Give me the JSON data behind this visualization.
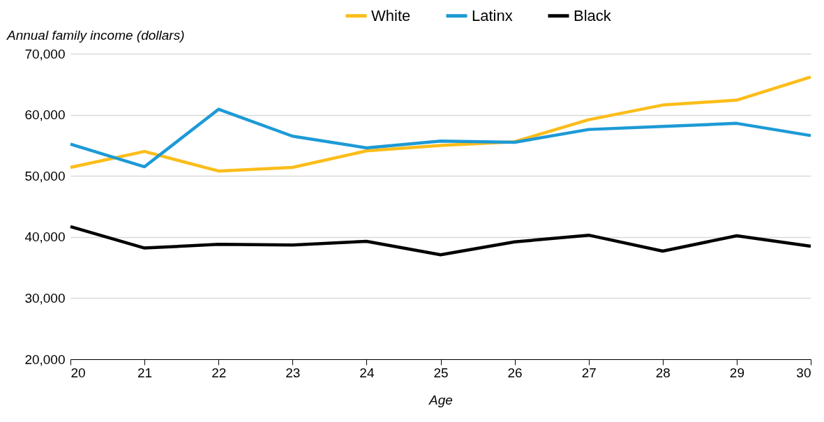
{
  "chart_data": {
    "type": "line",
    "xlabel": "Age",
    "ylabel": "Annual family income (dollars)",
    "x": [
      20,
      21,
      22,
      23,
      24,
      25,
      26,
      27,
      28,
      29,
      30
    ],
    "series": [
      {
        "name": "White",
        "color": "#fbbd1a",
        "values": [
          51400,
          54000,
          50800,
          51400,
          54100,
          55000,
          55600,
          59200,
          61600,
          62400,
          66200
        ]
      },
      {
        "name": "Latinx",
        "color": "#1d9ad6",
        "values": [
          55200,
          51500,
          60900,
          56500,
          54600,
          55700,
          55500,
          57600,
          58100,
          58600,
          56600
        ]
      },
      {
        "name": "Black",
        "color": "#000000",
        "values": [
          41700,
          38200,
          38800,
          38700,
          39300,
          37100,
          39200,
          40300,
          37700,
          40200,
          38500
        ]
      }
    ],
    "xlim": [
      20,
      30
    ],
    "xticks": [
      20,
      21,
      22,
      23,
      24,
      25,
      26,
      27,
      28,
      29,
      30
    ],
    "ylim": [
      20000,
      70000
    ],
    "yticks": [
      {
        "value": 20000,
        "label": "20,000"
      },
      {
        "value": 30000,
        "label": "30,000"
      },
      {
        "value": 40000,
        "label": "40,000"
      },
      {
        "value": 50000,
        "label": "50,000"
      },
      {
        "value": 60000,
        "label": "60,000"
      },
      {
        "value": 70000,
        "label": "70,000"
      }
    ],
    "grid": "y",
    "legend": "top",
    "marker": "none",
    "line_style": "solid"
  }
}
